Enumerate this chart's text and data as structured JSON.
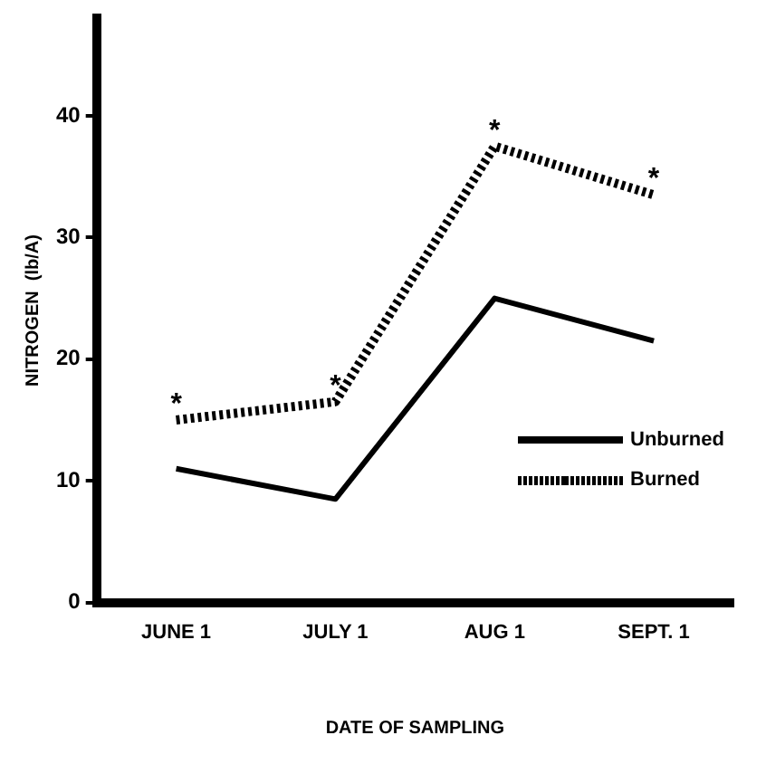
{
  "chart_data": {
    "type": "line",
    "xlabel": "DATE OF SAMPLING",
    "ylabel": "NITROGEN  (lb/A)",
    "categories": [
      "JUNE 1",
      "JULY 1",
      "AUG 1",
      "SEPT. 1"
    ],
    "series": [
      {
        "name": "Unburned",
        "color": "#000000",
        "values": [
          11,
          8.5,
          25,
          21.5
        ],
        "line_style": "solid"
      },
      {
        "name": "Burned",
        "color": "#000000",
        "values": [
          15,
          16.5,
          37.5,
          33.5
        ],
        "line_style": "dotted"
      }
    ],
    "annotations": [
      {
        "text": "*",
        "x": "JUNE 1",
        "y": 15
      },
      {
        "text": "*",
        "x": "JULY 1",
        "y": 16.5
      },
      {
        "text": "*",
        "x": "AUG 1",
        "y": 37.5
      },
      {
        "text": "*",
        "x": "SEPT. 1",
        "y": 33.5
      }
    ],
    "ylim": [
      0,
      48
    ],
    "yticks": [
      0,
      10,
      20,
      30,
      40
    ],
    "grid": false,
    "legend": "right",
    "marker": "none"
  }
}
